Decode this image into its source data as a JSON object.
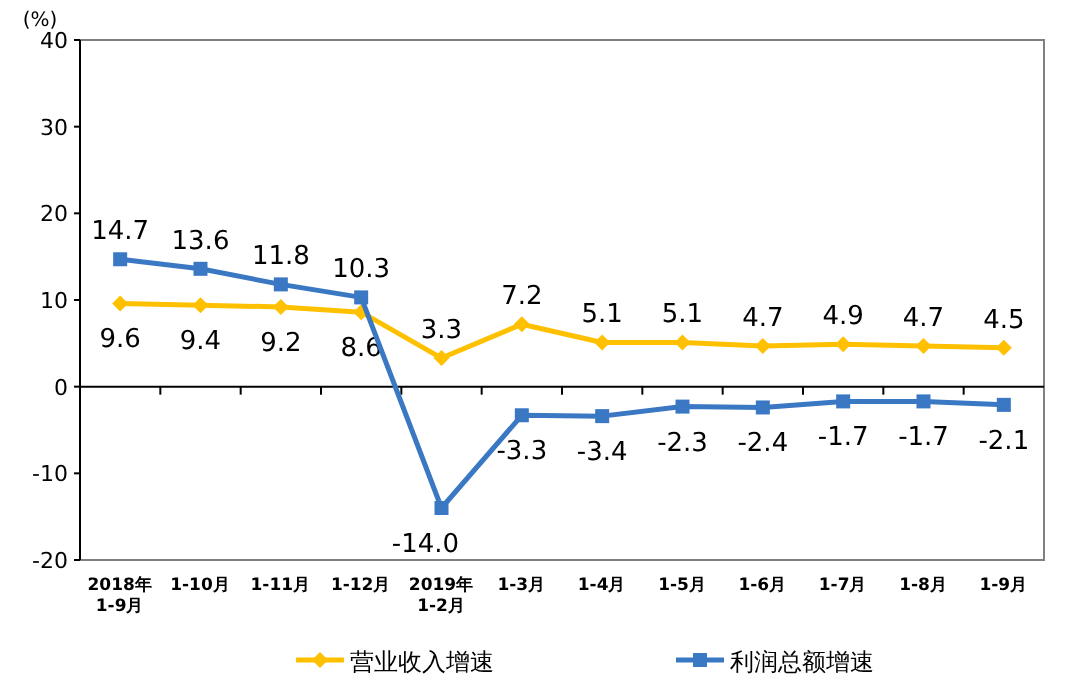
{
  "chart_data": {
    "type": "line",
    "ylabel": "(%)",
    "categories": [
      "2018年\n1-9月",
      "1-10月",
      "1-11月",
      "1-12月",
      "2019年\n1-2月",
      "1-3月",
      "1-4月",
      "1-5月",
      "1-6月",
      "1-7月",
      "1-8月",
      "1-9月"
    ],
    "series": [
      {
        "name": "营业收入增速",
        "color": "#ffc000",
        "marker": "diamond",
        "values": [
          9.6,
          9.4,
          9.2,
          8.6,
          3.3,
          7.2,
          5.1,
          5.1,
          4.7,
          4.9,
          4.7,
          4.5
        ],
        "value_labels": [
          "9.6",
          "9.4",
          "9.2",
          "8.6",
          "3.3",
          "7.2",
          "5.1",
          "5.1",
          "4.7",
          "4.9",
          "4.7",
          "4.5"
        ]
      },
      {
        "name": "利润总额增速",
        "color": "#3a78c4",
        "marker": "square",
        "values": [
          14.7,
          13.6,
          11.8,
          10.3,
          -14.0,
          -3.3,
          -3.4,
          -2.3,
          -2.4,
          -1.7,
          -1.7,
          -2.1
        ],
        "value_labels": [
          "14.7",
          "13.6",
          "11.8",
          "10.3",
          "-14.0",
          "-3.3",
          "-3.4",
          "-2.3",
          "-2.4",
          "-1.7",
          "-1.7",
          "-2.1"
        ]
      }
    ],
    "ylim": [
      -20,
      40
    ],
    "yticks": [
      -20,
      -10,
      0,
      10,
      20,
      30,
      40
    ],
    "legend": "bottom",
    "line_style": "solid"
  }
}
